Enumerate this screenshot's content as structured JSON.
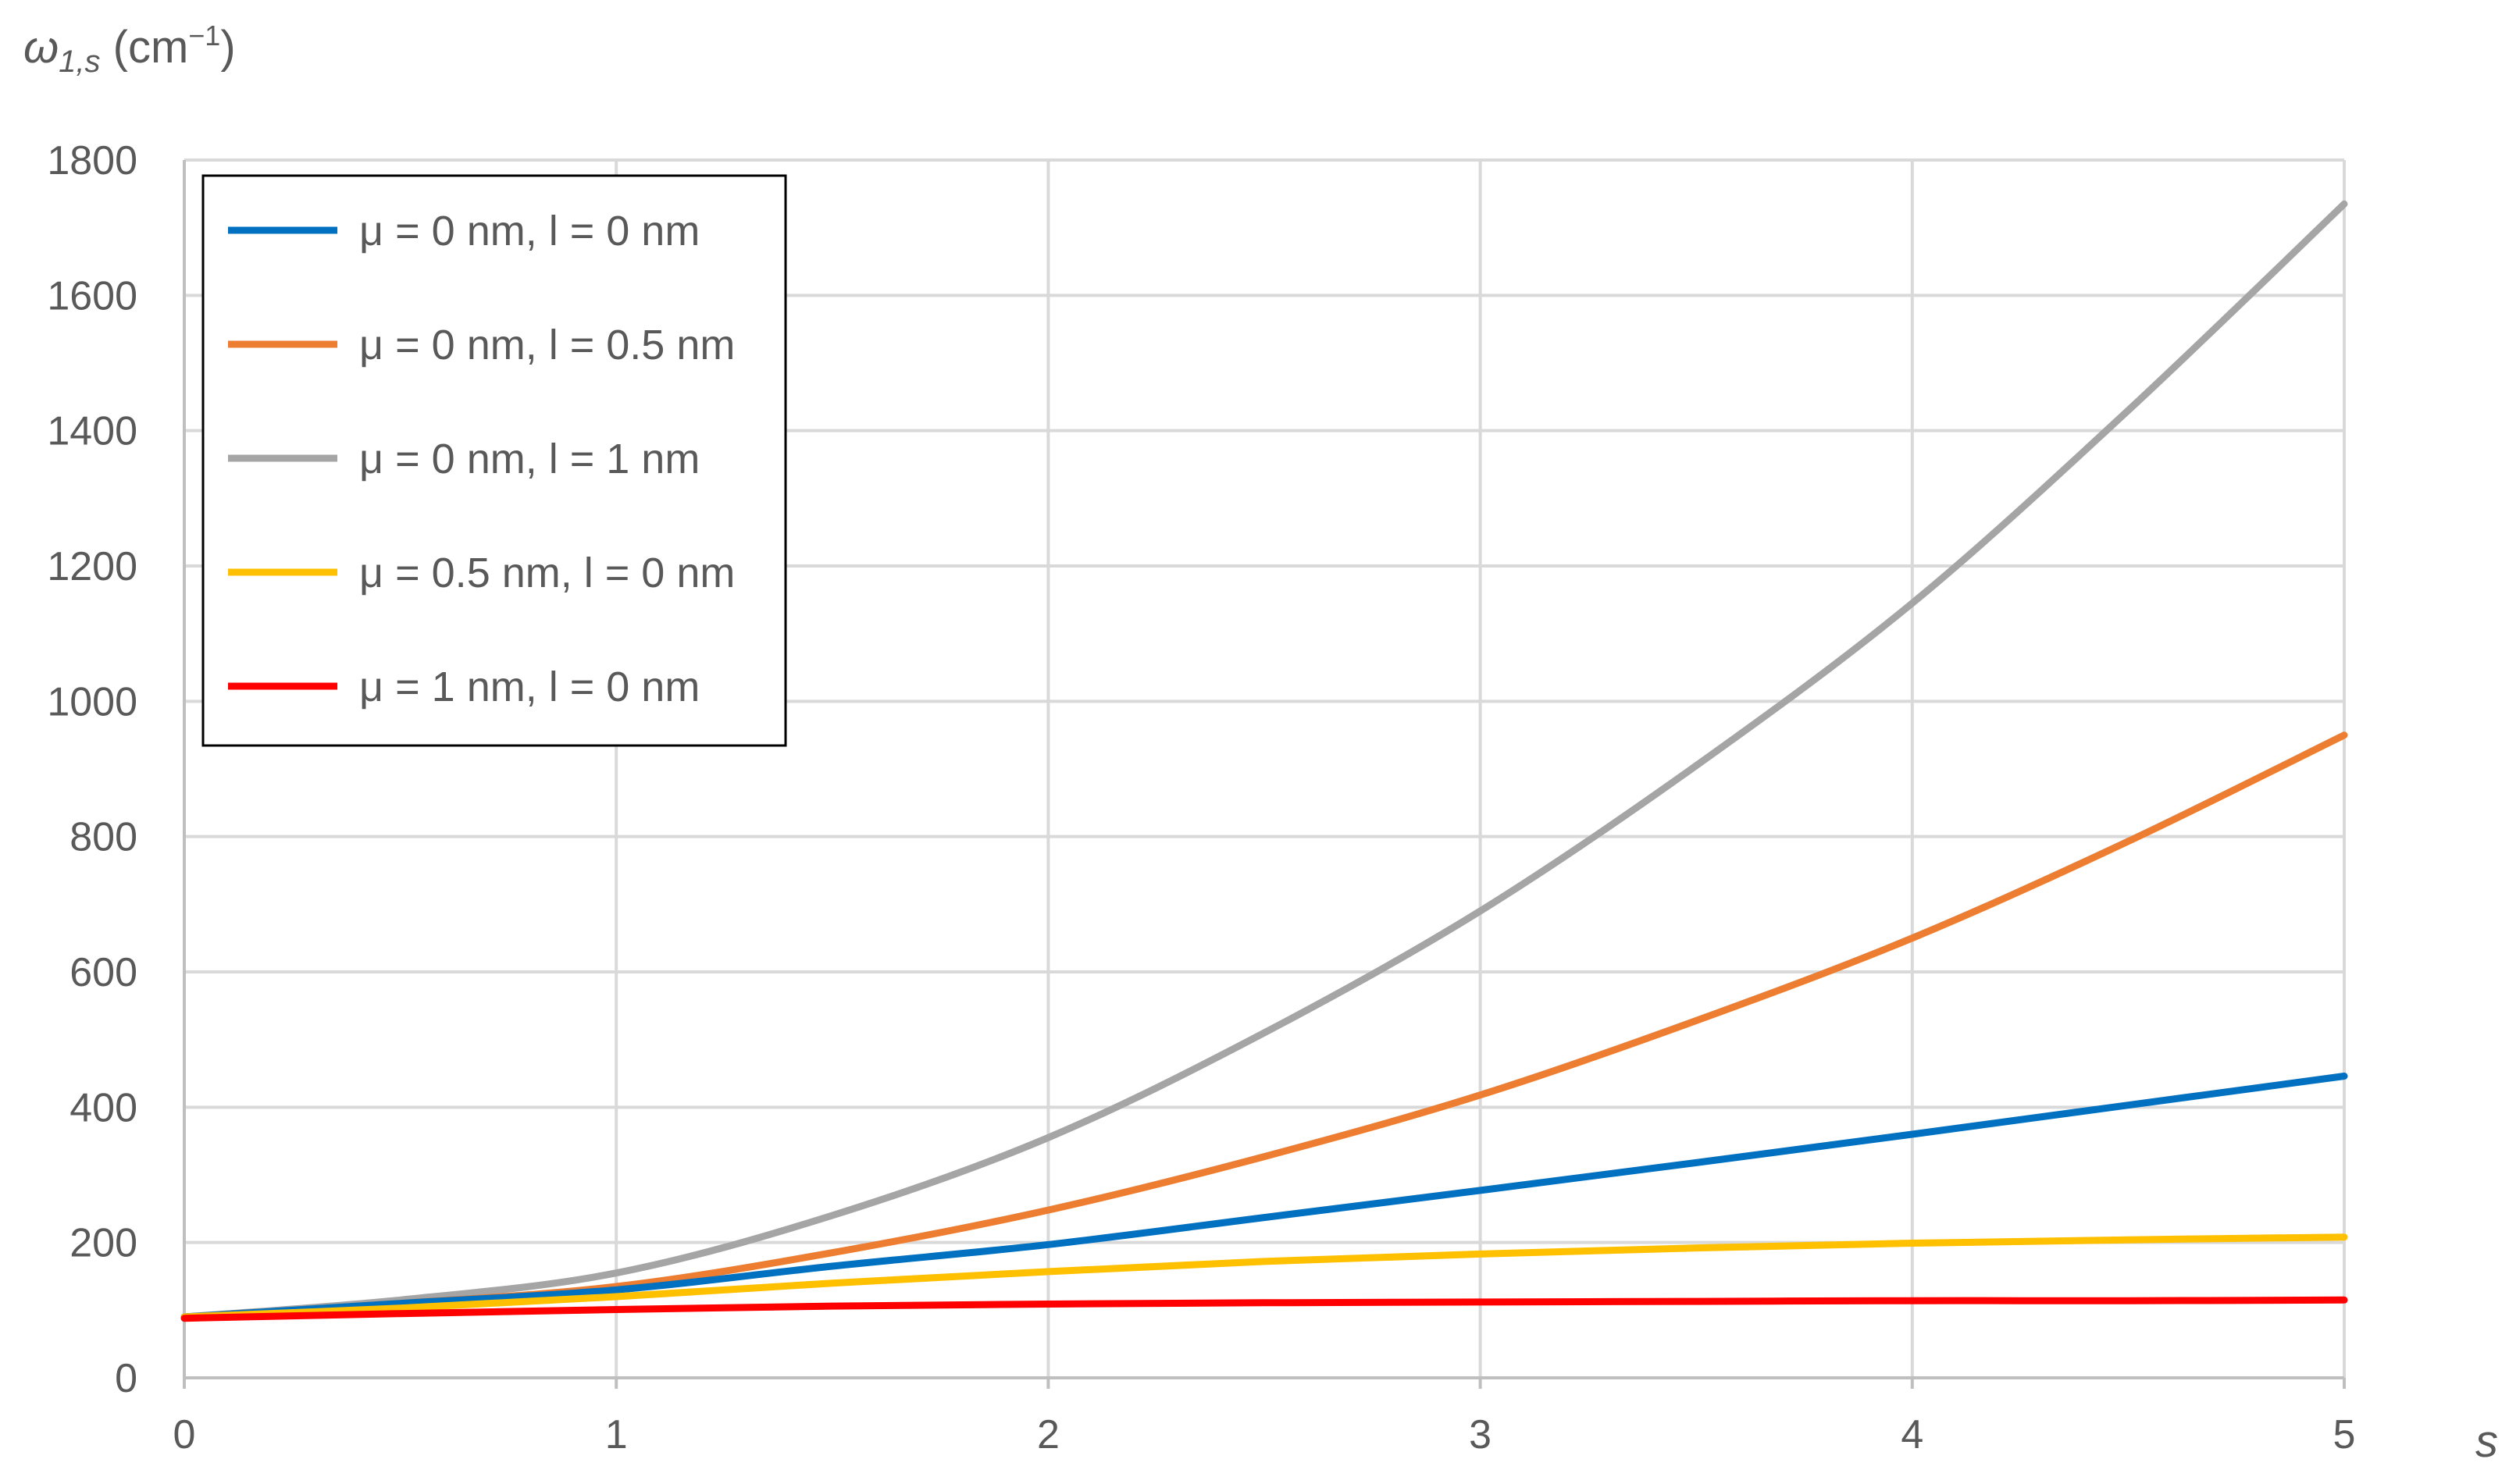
{
  "chart_data": {
    "type": "line",
    "title": "",
    "xlabel": "s",
    "ylabel": {
      "symbol": "ω",
      "subscript": "1,s",
      "unit_open": " (cm",
      "unit_exp": "−1",
      "unit_close": ")"
    },
    "xlim": [
      0,
      5
    ],
    "ylim": [
      0,
      1800
    ],
    "x_ticks": [
      "0",
      "1",
      "2",
      "3",
      "4",
      "5"
    ],
    "y_ticks": [
      "0",
      "200",
      "400",
      "600",
      "800",
      "1000",
      "1200",
      "1400",
      "1600",
      "1800"
    ],
    "grid": true,
    "legend_position": "top-left",
    "x": [
      0,
      0.5,
      1,
      1.5,
      2,
      2.5,
      3,
      3.5,
      4,
      4.5,
      5
    ],
    "series": [
      {
        "name": "μ = 0 nm, l = 0 nm",
        "color": "#0070C0",
        "values": [
          90,
          110,
          130,
          165,
          197,
          237,
          277,
          318,
          360,
          403,
          446
        ]
      },
      {
        "name": "μ = 0 nm, l = 0.5 nm",
        "color": "#ED7D31",
        "values": [
          90,
          110,
          135,
          185,
          248,
          327,
          418,
          528,
          650,
          793,
          950
        ]
      },
      {
        "name": "μ = 0 nm, l = 1 nm",
        "color": "#A5A5A5",
        "values": [
          90,
          115,
          155,
          240,
          355,
          510,
          690,
          905,
          1145,
          1430,
          1735
        ]
      },
      {
        "name": "μ = 0.5 nm, l = 0 nm",
        "color": "#FFC000",
        "values": [
          90,
          103,
          120,
          140,
          157,
          172,
          183,
          192,
          199,
          204,
          208
        ]
      },
      {
        "name": "μ = 1 nm, l = 0 nm",
        "color": "#FF0000",
        "values": [
          88,
          95,
          101,
          106,
          109,
          111,
          112,
          113,
          114,
          114,
          115
        ]
      }
    ]
  }
}
